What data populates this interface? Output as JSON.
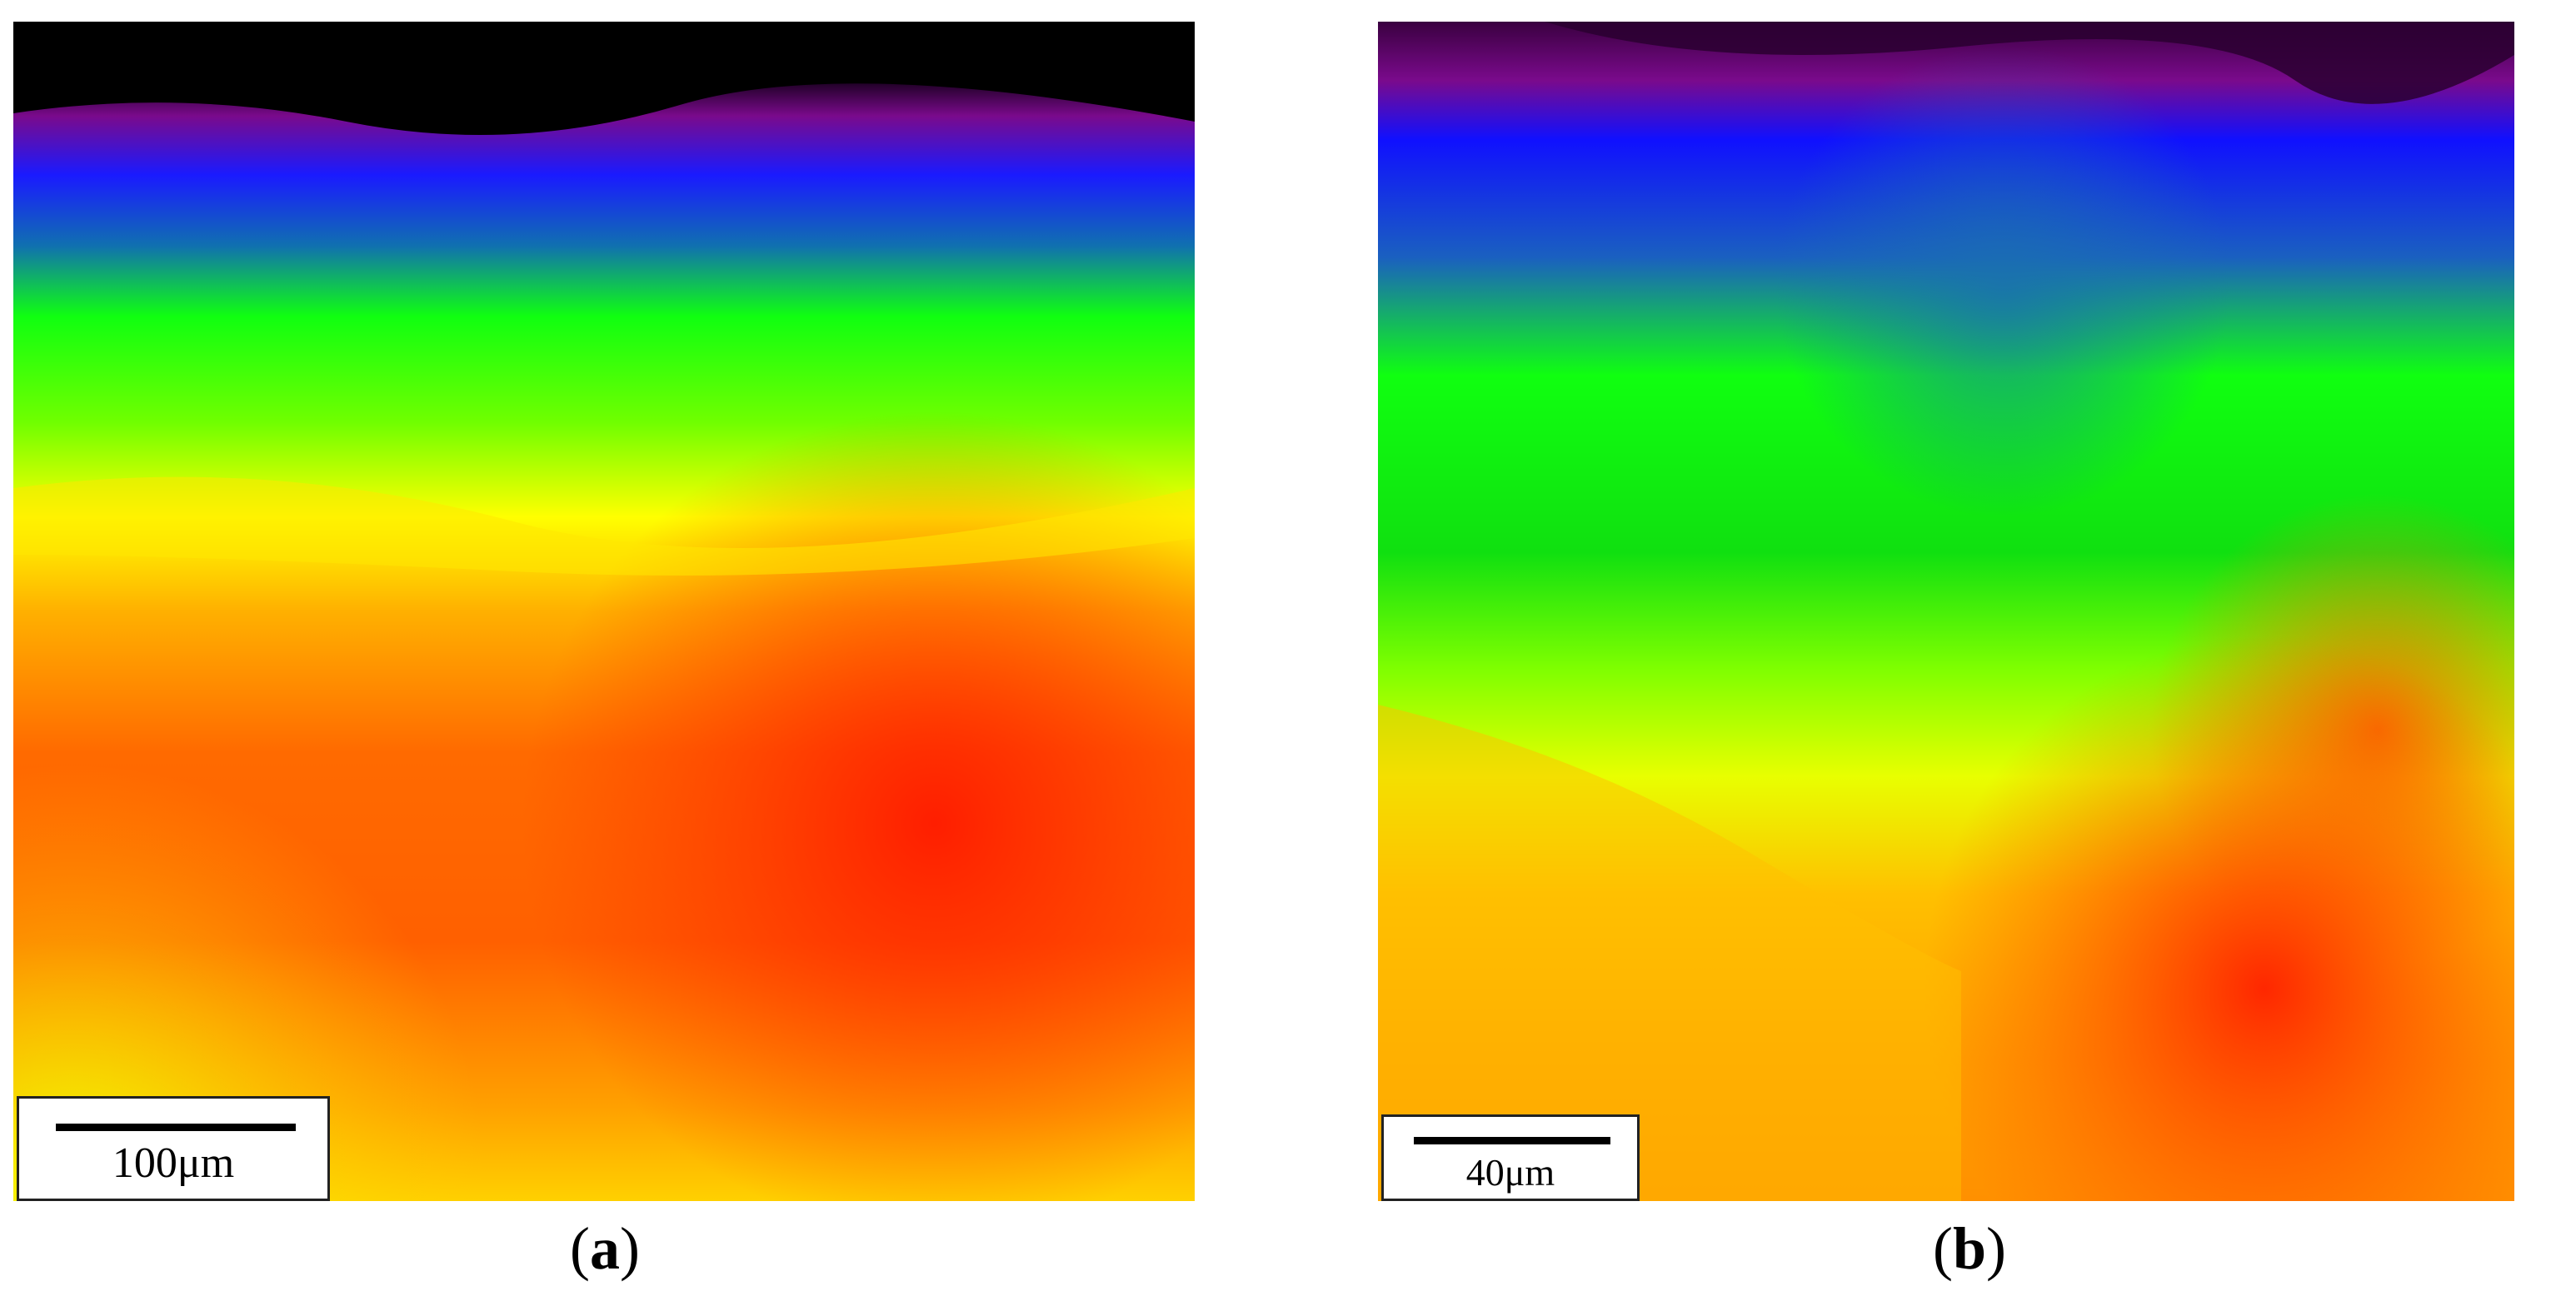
{
  "panels": [
    {
      "id": "a",
      "scale_bar_label": "100μm",
      "caption_open": "(",
      "caption_letter": "a",
      "caption_close": ")"
    },
    {
      "id": "b",
      "scale_bar_label": "40μm",
      "caption_open": "(",
      "caption_letter": "b",
      "caption_close": ")"
    }
  ],
  "colors": {
    "black": "#000000",
    "purple": "#7a0a8c",
    "blue": "#1020ff",
    "green": "#10ff10",
    "yellow": "#ffff00",
    "orange": "#ff9000",
    "red": "#ff1800"
  }
}
